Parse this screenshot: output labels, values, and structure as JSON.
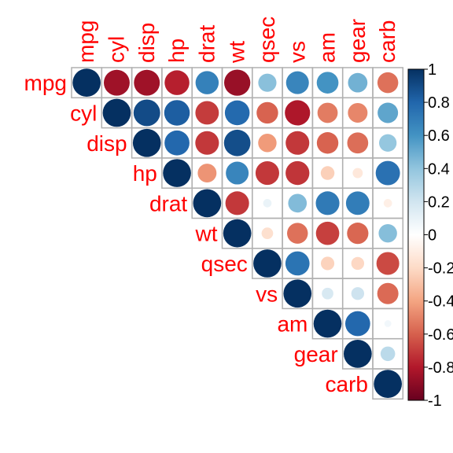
{
  "chart_data": {
    "type": "heatmap",
    "variables": [
      "mpg",
      "cyl",
      "disp",
      "hp",
      "drat",
      "wt",
      "qsec",
      "vs",
      "am",
      "gear",
      "carb"
    ],
    "matrix_shape": "upper-triangular",
    "marker": "circle",
    "correlations": [
      [
        1.0,
        -0.85,
        -0.85,
        -0.78,
        0.68,
        -0.87,
        0.42,
        0.66,
        0.6,
        0.48,
        -0.55
      ],
      [
        null,
        1.0,
        0.9,
        0.83,
        -0.7,
        0.78,
        -0.59,
        -0.81,
        -0.52,
        -0.49,
        0.53
      ],
      [
        null,
        null,
        1.0,
        0.79,
        -0.71,
        0.89,
        -0.43,
        -0.71,
        -0.59,
        -0.56,
        0.39
      ],
      [
        null,
        null,
        null,
        1.0,
        -0.45,
        0.66,
        -0.71,
        -0.72,
        -0.24,
        -0.13,
        0.75
      ],
      [
        null,
        null,
        null,
        null,
        1.0,
        -0.71,
        0.09,
        0.44,
        0.71,
        0.7,
        -0.09
      ],
      [
        null,
        null,
        null,
        null,
        null,
        1.0,
        -0.17,
        -0.55,
        -0.69,
        -0.58,
        0.43
      ],
      [
        null,
        null,
        null,
        null,
        null,
        null,
        1.0,
        0.74,
        -0.23,
        -0.21,
        -0.66
      ],
      [
        null,
        null,
        null,
        null,
        null,
        null,
        null,
        1.0,
        0.17,
        0.21,
        -0.57
      ],
      [
        null,
        null,
        null,
        null,
        null,
        null,
        null,
        null,
        1.0,
        0.79,
        0.06
      ],
      [
        null,
        null,
        null,
        null,
        null,
        null,
        null,
        null,
        null,
        1.0,
        0.27
      ],
      [
        null,
        null,
        null,
        null,
        null,
        null,
        null,
        null,
        null,
        null,
        1.0
      ]
    ],
    "colorbar": {
      "range": [
        -1,
        1
      ],
      "tick_labels": [
        "1",
        "0.8",
        "0.6",
        "0.4",
        "0.2",
        "0",
        "-0.2",
        "-0.4",
        "-0.6",
        "-0.8",
        "-1"
      ],
      "tick_values": [
        1,
        0.8,
        0.6,
        0.4,
        0.2,
        0,
        -0.2,
        -0.4,
        -0.6,
        -0.8,
        -1
      ],
      "position": "right",
      "palette": [
        "#67001F",
        "#B2182B",
        "#D6604D",
        "#F4A582",
        "#FDDBC7",
        "#FFFFFF",
        "#D1E5F0",
        "#92C5DE",
        "#4393C3",
        "#2166AC",
        "#053061"
      ]
    },
    "label_color": "#FF0000",
    "grid_color": "#B0B0B0"
  }
}
